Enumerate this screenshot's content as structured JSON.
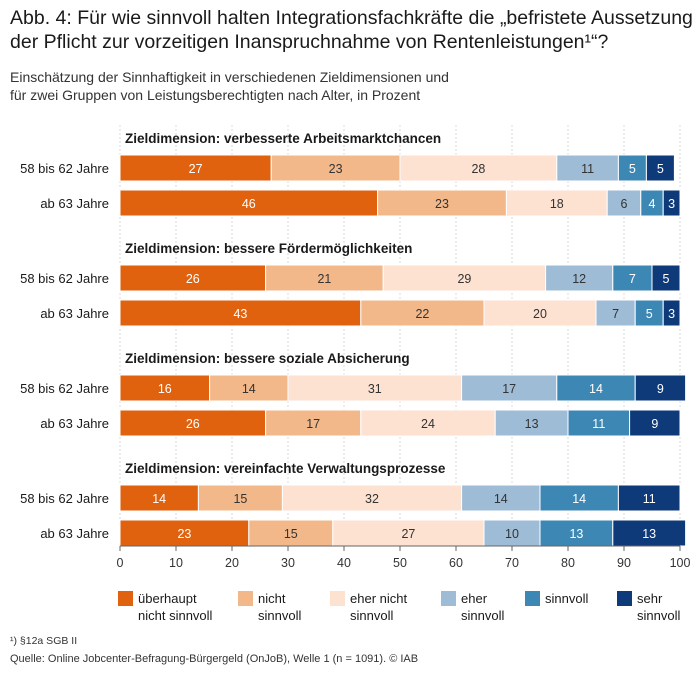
{
  "figure": {
    "title_line1": "Abb. 4: Für wie sinnvoll halten Integrationsfachkräfte die „befristete Aussetzung",
    "title_line2": "der Pflicht zur vorzeitigen Inanspruchnahme von Rentenleistungen¹“?",
    "subtitle_line1": "Einschätzung der Sinnhaftigkeit in verschiedenen Zieldimensionen und",
    "subtitle_line2": "für zwei Gruppen von Leistungsberechtigten nach Alter, in Prozent",
    "footnote": "¹) §12a SGB II",
    "source": "Quelle: Online Jobcenter-Befragung-Bürgergeld (OnJoB), Welle 1 (n = 1091).  © IAB"
  },
  "chart_data": {
    "type": "bar",
    "orientation": "horizontal",
    "stacked": true,
    "xlim": [
      0,
      100
    ],
    "xticks": [
      0,
      10,
      20,
      30,
      40,
      50,
      60,
      70,
      80,
      90,
      100
    ],
    "grid": true,
    "legend_position": "bottom",
    "series": [
      {
        "name": "überhaupt nicht sinnvoll",
        "label_lines": [
          "überhaupt",
          "nicht sinnvoll"
        ],
        "color": "#e0620f"
      },
      {
        "name": "nicht sinnvoll",
        "label_lines": [
          "nicht",
          "sinnvoll"
        ],
        "color": "#f3b88a"
      },
      {
        "name": "eher nicht sinnvoll",
        "label_lines": [
          "eher nicht",
          "sinnvoll"
        ],
        "color": "#fde2d2"
      },
      {
        "name": "eher sinnvoll",
        "label_lines": [
          "eher",
          "sinnvoll"
        ],
        "color": "#9fbcd6"
      },
      {
        "name": "sinnvoll",
        "label_lines": [
          "sinnvoll"
        ],
        "color": "#3d87b5"
      },
      {
        "name": "sehr sinnvoll",
        "label_lines": [
          "sehr",
          "sinnvoll"
        ],
        "color": "#0e3a7a"
      }
    ],
    "groups": [
      {
        "title": "Zieldimension: verbesserte Arbeitsmarktchancen",
        "rows": [
          {
            "label": "58 bis 62 Jahre",
            "values": [
              27,
              23,
              28,
              11,
              5,
              5
            ]
          },
          {
            "label": "ab 63 Jahre",
            "values": [
              46,
              23,
              18,
              6,
              4,
              3
            ]
          }
        ]
      },
      {
        "title": "Zieldimension: bessere Fördermöglichkeiten",
        "rows": [
          {
            "label": "58 bis 62 Jahre",
            "values": [
              26,
              21,
              29,
              12,
              7,
              5
            ]
          },
          {
            "label": "ab 63 Jahre",
            "values": [
              43,
              22,
              20,
              7,
              5,
              3
            ]
          }
        ]
      },
      {
        "title": "Zieldimension: bessere soziale Absicherung",
        "rows": [
          {
            "label": "58 bis 62 Jahre",
            "values": [
              16,
              14,
              31,
              17,
              14,
              9
            ]
          },
          {
            "label": "ab 63 Jahre",
            "values": [
              26,
              17,
              24,
              13,
              11,
              9
            ]
          }
        ]
      },
      {
        "title": "Zieldimension: vereinfachte Verwaltungsprozesse",
        "rows": [
          {
            "label": "58 bis 62 Jahre",
            "values": [
              14,
              15,
              32,
              14,
              14,
              11
            ]
          },
          {
            "label": "ab 63 Jahre",
            "values": [
              23,
              15,
              27,
              10,
              13,
              13
            ]
          }
        ]
      }
    ]
  }
}
